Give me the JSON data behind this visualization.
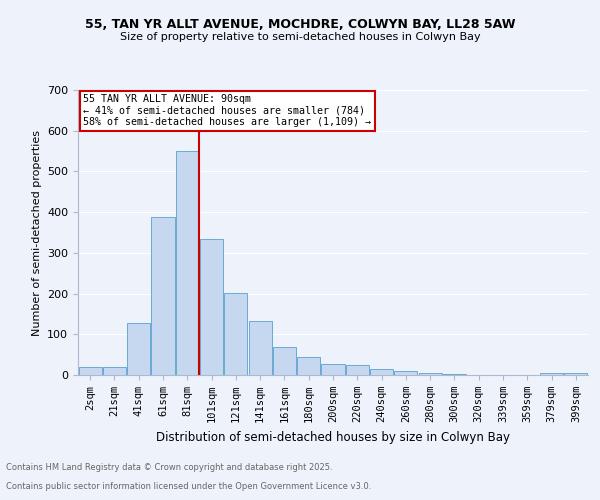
{
  "title1": "55, TAN YR ALLT AVENUE, MOCHDRE, COLWYN BAY, LL28 5AW",
  "title2": "Size of property relative to semi-detached houses in Colwyn Bay",
  "xlabel": "Distribution of semi-detached houses by size in Colwyn Bay",
  "ylabel": "Number of semi-detached properties",
  "bin_labels": [
    "2sqm",
    "21sqm",
    "41sqm",
    "61sqm",
    "81sqm",
    "101sqm",
    "121sqm",
    "141sqm",
    "161sqm",
    "180sqm",
    "200sqm",
    "220sqm",
    "240sqm",
    "260sqm",
    "280sqm",
    "300sqm",
    "320sqm",
    "339sqm",
    "359sqm",
    "379sqm",
    "399sqm"
  ],
  "bar_heights": [
    20,
    20,
    127,
    387,
    550,
    333,
    202,
    133,
    68,
    44,
    26,
    24,
    14,
    9,
    4,
    2,
    1,
    0,
    0,
    5,
    5
  ],
  "bar_color": "#c5d8f0",
  "bar_edge_color": "#6aaad4",
  "property_line_x": 4.5,
  "annotation_title": "55 TAN YR ALLT AVENUE: 90sqm",
  "annotation_line1": "← 41% of semi-detached houses are smaller (784)",
  "annotation_line2": "58% of semi-detached houses are larger (1,109) →",
  "vline_color": "#cc0000",
  "annotation_box_color": "#ffffff",
  "annotation_box_edge": "#cc0000",
  "ylim": [
    0,
    700
  ],
  "yticks": [
    0,
    100,
    200,
    300,
    400,
    500,
    600,
    700
  ],
  "footer1": "Contains HM Land Registry data © Crown copyright and database right 2025.",
  "footer2": "Contains public sector information licensed under the Open Government Licence v3.0.",
  "bg_color": "#eef2fb",
  "plot_bg_color": "#eef2fb",
  "grid_color": "#ffffff"
}
